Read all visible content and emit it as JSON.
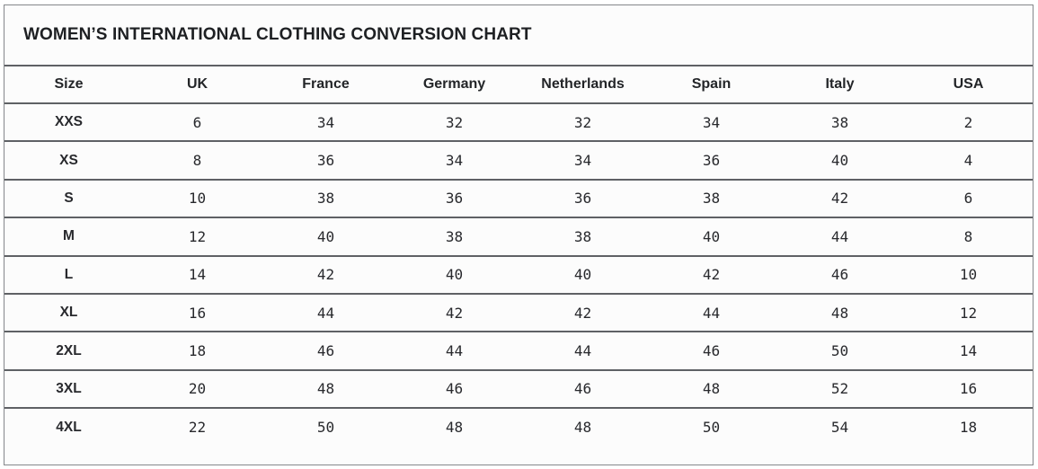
{
  "chart_data": {
    "type": "table",
    "title": "WOMEN’S INTERNATIONAL CLOTHING CONVERSION CHART",
    "columns": [
      "Size",
      "UK",
      "France",
      "Germany",
      "Netherlands",
      "Spain",
      "Italy",
      "USA"
    ],
    "rows": [
      [
        "XXS",
        6,
        34,
        32,
        32,
        34,
        38,
        2
      ],
      [
        "XS",
        8,
        36,
        34,
        34,
        36,
        40,
        4
      ],
      [
        "S",
        10,
        38,
        36,
        36,
        38,
        42,
        6
      ],
      [
        "M",
        12,
        40,
        38,
        38,
        40,
        44,
        8
      ],
      [
        "L",
        14,
        42,
        40,
        40,
        42,
        46,
        10
      ],
      [
        "XL",
        16,
        44,
        42,
        42,
        44,
        48,
        12
      ],
      [
        "2XL",
        18,
        46,
        44,
        44,
        46,
        50,
        14
      ],
      [
        "3XL",
        20,
        48,
        46,
        46,
        48,
        52,
        16
      ],
      [
        "4XL",
        22,
        50,
        48,
        48,
        50,
        54,
        18
      ]
    ],
    "layout": {
      "grid": "horizontal-row-separators-only",
      "legend": "none"
    }
  },
  "colors": {
    "card_background": "#fcfcfc",
    "outer_border": "#85878b",
    "row_separator": "#5f6165",
    "text": "#28292d",
    "title_text": "#1e2023"
  }
}
